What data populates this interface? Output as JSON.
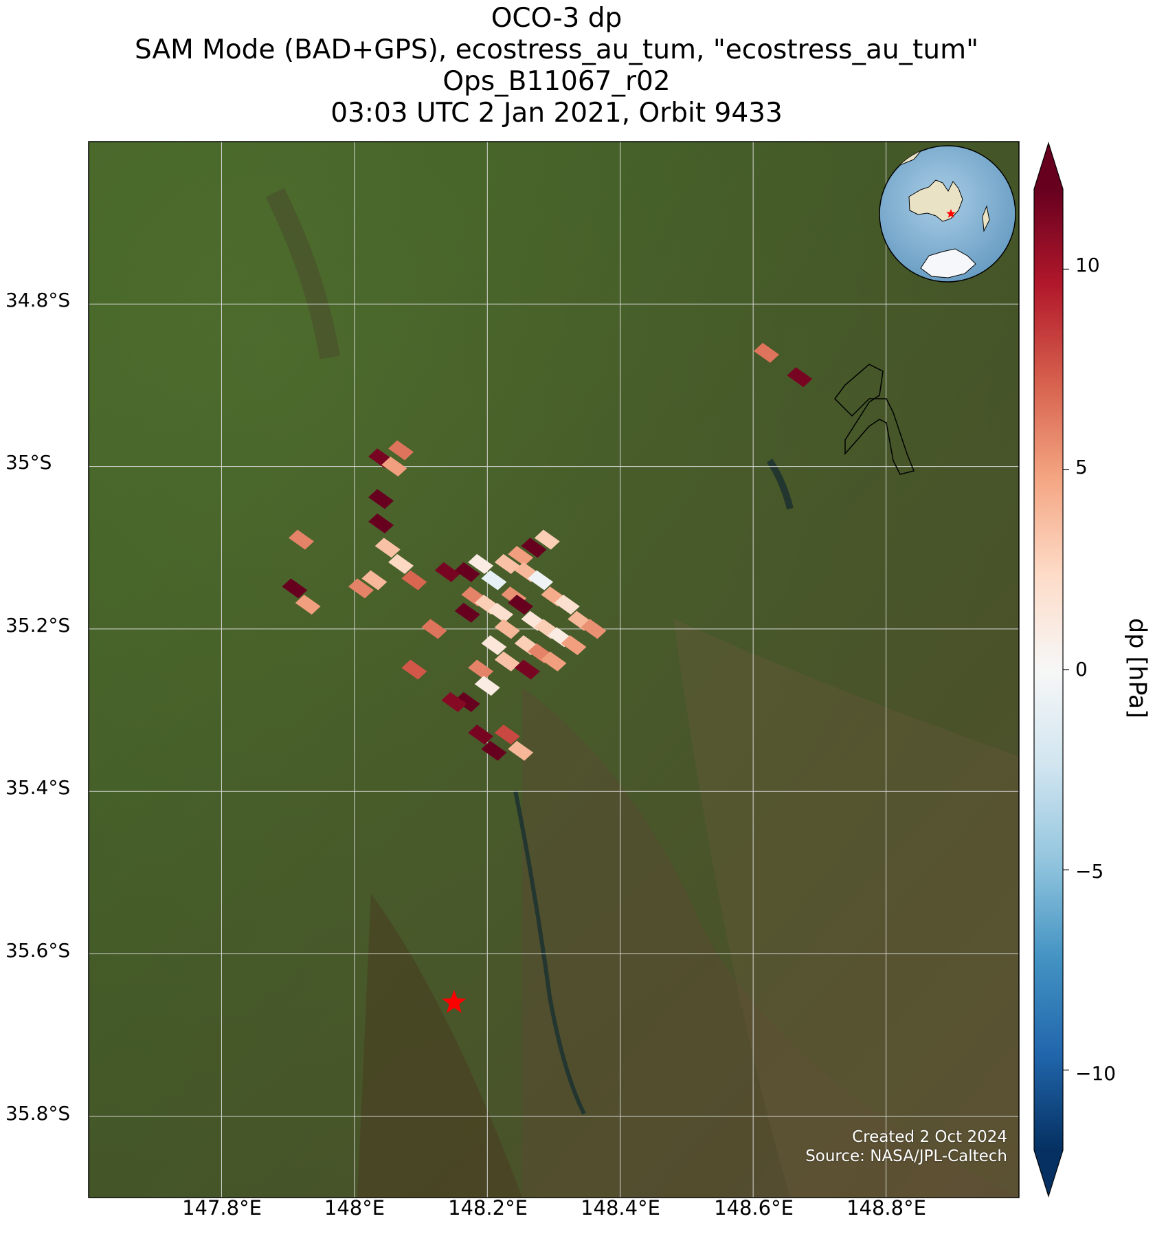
{
  "title": {
    "line1": "OCO-3 dp",
    "line2": "SAM Mode (BAD+GPS), ecostress_au_tum, \"ecostress_au_tum\"",
    "line3": "Ops_B11067_r02",
    "line4": "03:03 UTC 2 Jan 2021, Orbit 9433"
  },
  "map": {
    "lon_range": [
      147.6,
      149.0
    ],
    "lat_range": [
      -35.9,
      -34.6
    ],
    "lat_ticks": [
      "34.8°S",
      "35°S",
      "35.2°S",
      "35.4°S",
      "35.6°S",
      "35.8°S"
    ],
    "lon_ticks": [
      "147.8°E",
      "148°E",
      "148.2°E",
      "148.4°E",
      "148.6°E",
      "148.8°E"
    ],
    "gridlines": true,
    "basemap": "satellite imagery",
    "target_marker": {
      "icon": "red-star-icon",
      "lon": 148.15,
      "lat": -35.66,
      "color": "#ff0000"
    },
    "inset": "globe centered on Australia with red star at target"
  },
  "colorbar": {
    "label": "dp [hPa]",
    "range": [
      -12,
      12
    ],
    "ticks": [
      "10",
      "5",
      "0",
      "−5",
      "−10"
    ],
    "tick_values": [
      10,
      5,
      0,
      -5,
      -10
    ],
    "cmap": "RdBu_r",
    "extend": "both"
  },
  "credits": {
    "created": "Created 2 Oct 2024",
    "source": "Source: NASA/JPL-Caltech"
  },
  "chart_data": {
    "type": "heatmap",
    "title": "OCO-3 dp",
    "unit": "hPa",
    "soundings": [
      {
        "lon": 148.04,
        "lat": -34.99,
        "dp": 11.5
      },
      {
        "lon": 148.07,
        "lat": -34.98,
        "dp": 6.5
      },
      {
        "lon": 148.06,
        "lat": -35.0,
        "dp": 5.0
      },
      {
        "lon": 148.04,
        "lat": -35.04,
        "dp": 12.0
      },
      {
        "lon": 148.04,
        "lat": -35.07,
        "dp": 12.5
      },
      {
        "lon": 148.05,
        "lat": -35.1,
        "dp": 3.5
      },
      {
        "lon": 148.07,
        "lat": -35.12,
        "dp": 2.5
      },
      {
        "lon": 148.09,
        "lat": -35.14,
        "dp": 7.0
      },
      {
        "lon": 147.92,
        "lat": -35.09,
        "dp": 6.0
      },
      {
        "lon": 147.91,
        "lat": -35.15,
        "dp": 12.0
      },
      {
        "lon": 147.93,
        "lat": -35.17,
        "dp": 5.0
      },
      {
        "lon": 148.01,
        "lat": -35.15,
        "dp": 6.0
      },
      {
        "lon": 148.03,
        "lat": -35.14,
        "dp": 4.0
      },
      {
        "lon": 148.12,
        "lat": -35.2,
        "dp": 6.5
      },
      {
        "lon": 148.09,
        "lat": -35.25,
        "dp": 7.5
      },
      {
        "lon": 148.14,
        "lat": -35.13,
        "dp": 11.5
      },
      {
        "lon": 148.17,
        "lat": -35.13,
        "dp": 12.0
      },
      {
        "lon": 148.19,
        "lat": -35.12,
        "dp": 1.0
      },
      {
        "lon": 148.21,
        "lat": -35.14,
        "dp": -1.0
      },
      {
        "lon": 148.23,
        "lat": -35.12,
        "dp": 3.5
      },
      {
        "lon": 148.25,
        "lat": -35.11,
        "dp": 5.0
      },
      {
        "lon": 148.27,
        "lat": -35.1,
        "dp": 12.0
      },
      {
        "lon": 148.29,
        "lat": -35.09,
        "dp": 3.0
      },
      {
        "lon": 148.26,
        "lat": -35.13,
        "dp": 4.0
      },
      {
        "lon": 148.28,
        "lat": -35.14,
        "dp": -0.5
      },
      {
        "lon": 148.3,
        "lat": -35.16,
        "dp": 4.5
      },
      {
        "lon": 148.32,
        "lat": -35.17,
        "dp": 2.0
      },
      {
        "lon": 148.34,
        "lat": -35.19,
        "dp": 4.0
      },
      {
        "lon": 148.36,
        "lat": -35.2,
        "dp": 5.5
      },
      {
        "lon": 148.18,
        "lat": -35.16,
        "dp": 6.0
      },
      {
        "lon": 148.17,
        "lat": -35.18,
        "dp": 12.0
      },
      {
        "lon": 148.2,
        "lat": -35.17,
        "dp": 3.0
      },
      {
        "lon": 148.22,
        "lat": -35.18,
        "dp": 2.0
      },
      {
        "lon": 148.24,
        "lat": -35.16,
        "dp": 5.5
      },
      {
        "lon": 148.25,
        "lat": -35.17,
        "dp": 12.5
      },
      {
        "lon": 148.27,
        "lat": -35.19,
        "dp": 1.5
      },
      {
        "lon": 148.29,
        "lat": -35.2,
        "dp": 3.0
      },
      {
        "lon": 148.31,
        "lat": -35.21,
        "dp": 1.0
      },
      {
        "lon": 148.33,
        "lat": -35.22,
        "dp": 5.0
      },
      {
        "lon": 148.23,
        "lat": -35.2,
        "dp": 4.0
      },
      {
        "lon": 148.21,
        "lat": -35.22,
        "dp": 1.5
      },
      {
        "lon": 148.23,
        "lat": -35.24,
        "dp": 3.5
      },
      {
        "lon": 148.26,
        "lat": -35.22,
        "dp": 3.0
      },
      {
        "lon": 148.28,
        "lat": -35.23,
        "dp": 6.0
      },
      {
        "lon": 148.3,
        "lat": -35.24,
        "dp": 5.0
      },
      {
        "lon": 148.26,
        "lat": -35.25,
        "dp": 11.5
      },
      {
        "lon": 148.19,
        "lat": -35.25,
        "dp": 6.0
      },
      {
        "lon": 148.2,
        "lat": -35.27,
        "dp": 1.0
      },
      {
        "lon": 148.17,
        "lat": -35.29,
        "dp": 12.0
      },
      {
        "lon": 148.15,
        "lat": -35.29,
        "dp": 11.0
      },
      {
        "lon": 148.19,
        "lat": -35.33,
        "dp": 11.5
      },
      {
        "lon": 148.21,
        "lat": -35.35,
        "dp": 12.0
      },
      {
        "lon": 148.23,
        "lat": -35.33,
        "dp": 8.0
      },
      {
        "lon": 148.25,
        "lat": -35.35,
        "dp": 4.0
      },
      {
        "lon": 148.62,
        "lat": -34.86,
        "dp": 6.5
      },
      {
        "lon": 148.67,
        "lat": -34.89,
        "dp": 11.5
      }
    ]
  }
}
